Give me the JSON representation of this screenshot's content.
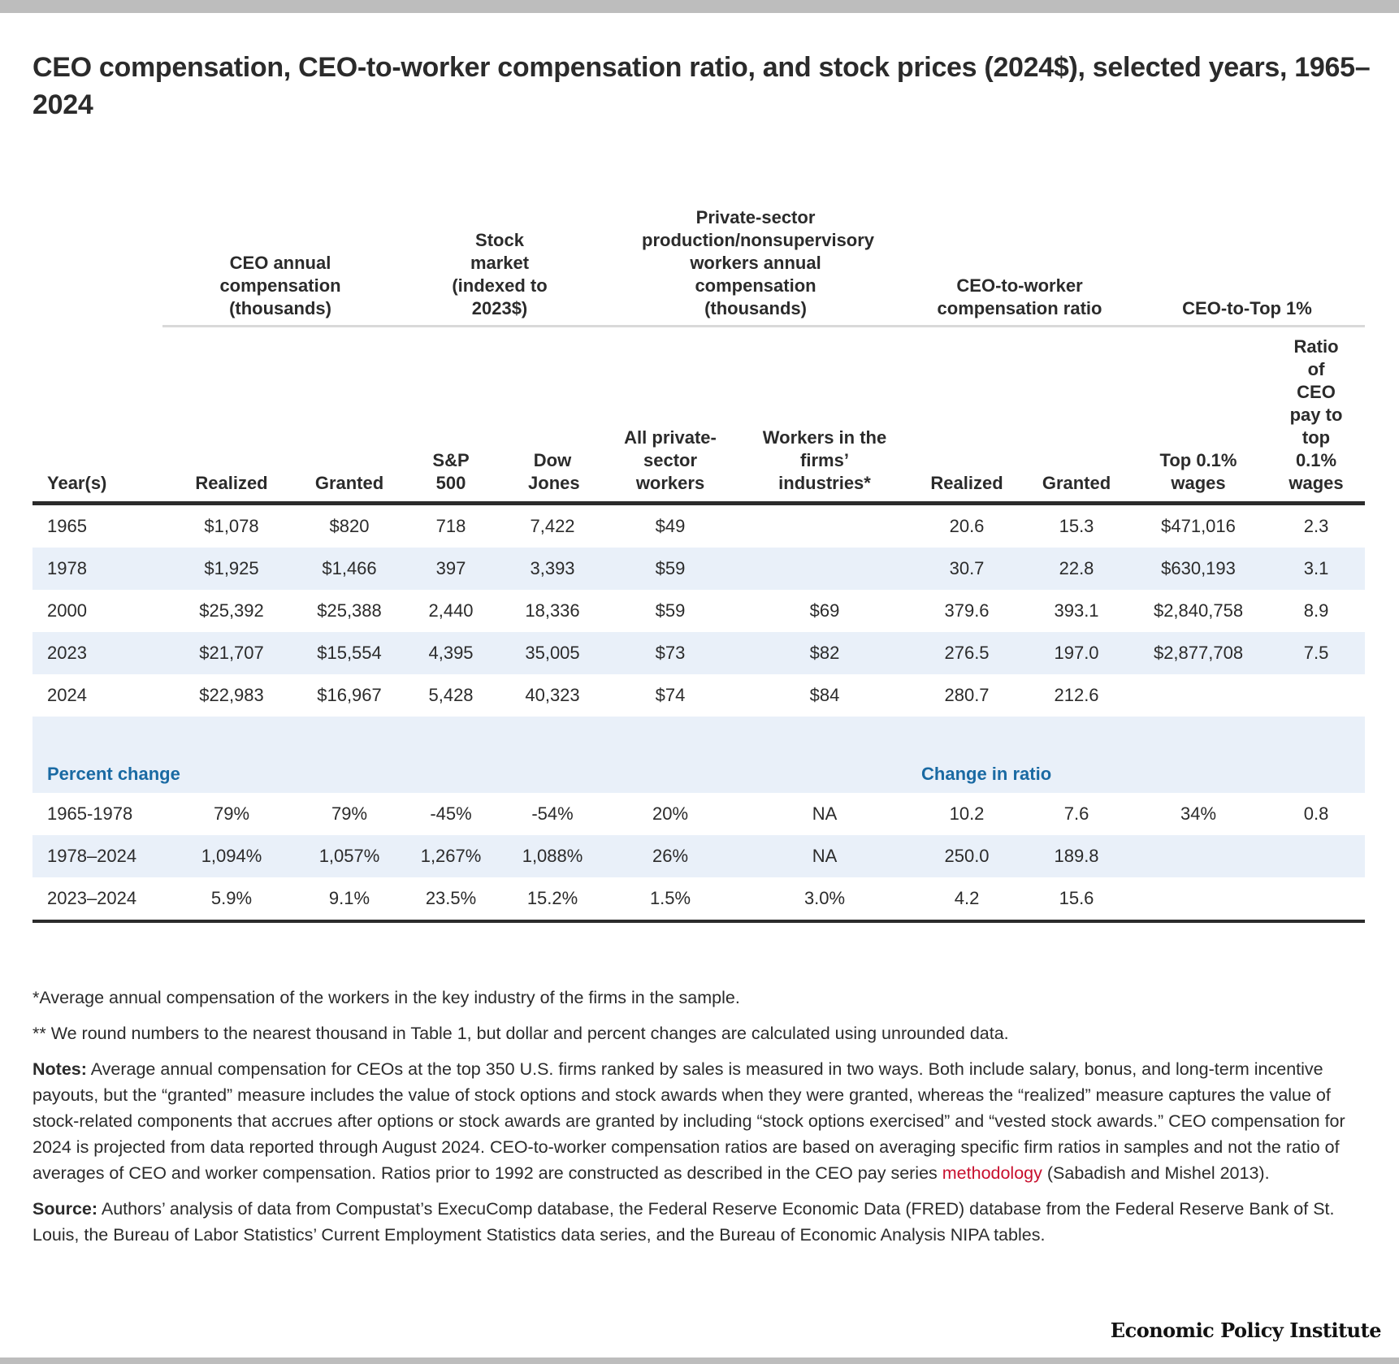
{
  "title": "CEO compensation, CEO-to-worker compensation ratio, and stock prices (2024$), selected years, 1965–2024",
  "group_headers": {
    "ceo_comp": "CEO annual compensation (thousands)",
    "stock": "Stock market (indexed to 2023$)",
    "workers": "Private-sector production/nonsupervisory workers annual compensation (thousands)",
    "ratio": "CEO-to-worker compensation ratio",
    "top1": "CEO-to-Top 1%"
  },
  "columns": [
    "Year(s)",
    "Realized",
    "Granted",
    "S&P 500",
    "Dow Jones",
    "All private-sector workers",
    "Workers in the firms’ industries*",
    "Realized",
    "Granted",
    "Top 0.1% wages",
    "Ratio of CEO pay to top 0.1% wages"
  ],
  "rows": [
    [
      "1965",
      "$1,078",
      "$820",
      "718",
      "7,422",
      "$49",
      "",
      "20.6",
      "15.3",
      "$471,016",
      "2.3"
    ],
    [
      "1978",
      "$1,925",
      "$1,466",
      "397",
      "3,393",
      "$59",
      "",
      "30.7",
      "22.8",
      "$630,193",
      "3.1"
    ],
    [
      "2000",
      "$25,392",
      "$25,388",
      "2,440",
      "18,336",
      "$59",
      "$69",
      "379.6",
      "393.1",
      "$2,840,758",
      "8.9"
    ],
    [
      "2023",
      "$21,707",
      "$15,554",
      "4,395",
      "35,005",
      "$73",
      "$82",
      "276.5",
      "197.0",
      "$2,877,708",
      "7.5"
    ],
    [
      "2024",
      "$22,983",
      "$16,967",
      "5,428",
      "40,323",
      "$74",
      "$84",
      "280.7",
      "212.6",
      "",
      ""
    ]
  ],
  "section": {
    "percent_change": "Percent change",
    "change_in_ratio": "Change in ratio"
  },
  "change_rows": [
    [
      "1965-1978",
      "79%",
      "79%",
      "-45%",
      "-54%",
      "20%",
      "NA",
      "10.2",
      "7.6",
      "34%",
      "0.8"
    ],
    [
      "1978–2024",
      "1,094%",
      "1,057%",
      "1,267%",
      "1,088%",
      "26%",
      "NA",
      "250.0",
      "189.8",
      "",
      ""
    ],
    [
      "2023–2024",
      "5.9%",
      "9.1%",
      "23.5%",
      "15.2%",
      "1.5%",
      "3.0%",
      "4.2",
      "15.6",
      "",
      ""
    ]
  ],
  "notes": {
    "footnote1": "*Average annual compensation of the workers in the key industry of the firms in the sample.",
    "footnote2": "** We round numbers to the nearest thousand in Table 1, but dollar and percent changes are calculated using unrounded data.",
    "notes_label": "Notes:",
    "notes_text": " Average annual compensation for CEOs at the top 350 U.S. firms ranked by sales is measured in two ways. Both include salary, bonus, and long-term incentive payouts, but the “granted” measure includes the value of stock options and stock awards when they were granted, whereas the “realized” measure captures the value of stock-related components that accrues after options or stock awards are granted by including “stock options exercised” and “vested stock awards.” CEO compensation for 2024 is projected from data reported through August 2024. CEO-to-worker compensation ratios are based on averaging specific firm ratios in samples and not the ratio of averages of CEO and worker compensation. Ratios prior to 1992 are constructed as described in the CEO pay series ",
    "notes_link": "methodology",
    "notes_end": " (Sabadish and Mishel 2013).",
    "source_label": "Source:",
    "source_text": " Authors’ analysis of data from Compustat’s ExecuComp database, the Federal Reserve Economic Data (FRED) database from the Federal Reserve Bank of St. Louis, the Bureau of Labor Statistics’ Current Employment Statistics data series, and the Bureau of Economic Analysis NIPA tables."
  },
  "brand": "Economic Policy Institute",
  "colors": {
    "accent_blue": "#1a6aa3",
    "band": "#e9f0f9",
    "link_red": "#c8102e"
  }
}
